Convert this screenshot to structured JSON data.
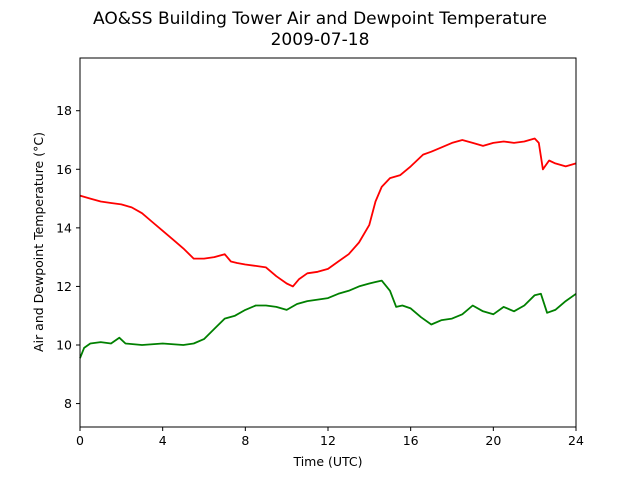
{
  "chart_data": {
    "type": "line",
    "title": "AO&SS Building Tower Air and Dewpoint Temperature",
    "subtitle": "2009-07-18",
    "xlabel": "Time (UTC)",
    "ylabel": "Air and Dewpoint Temperature (°C)",
    "xlim": [
      0,
      24
    ],
    "ylim": [
      7.2,
      19.8
    ],
    "xticks": [
      0,
      4,
      8,
      12,
      16,
      20,
      24
    ],
    "yticks": [
      8,
      10,
      12,
      14,
      16,
      18
    ],
    "grid": false,
    "legend": "none",
    "series": [
      {
        "color": "#ff0000",
        "x": [
          0,
          0.5,
          1,
          1.5,
          2,
          2.5,
          3,
          3.5,
          4,
          4.5,
          5,
          5.5,
          6,
          6.5,
          7,
          7.3,
          7.6,
          8,
          8.5,
          9,
          9.5,
          10,
          10.3,
          10.6,
          11,
          11.5,
          12,
          12.5,
          13,
          13.5,
          14,
          14.3,
          14.6,
          15,
          15.5,
          16,
          16.3,
          16.6,
          17,
          17.5,
          18,
          18.5,
          19,
          19.5,
          20,
          20.5,
          21,
          21.5,
          22,
          22.2,
          22.4,
          22.7,
          23,
          23.5,
          24
        ],
        "y": [
          15.1,
          15.0,
          14.9,
          14.85,
          14.8,
          14.7,
          14.5,
          14.2,
          13.9,
          13.6,
          13.3,
          12.95,
          12.95,
          13.0,
          13.1,
          12.85,
          12.8,
          12.75,
          12.7,
          12.65,
          12.35,
          12.1,
          12.0,
          12.25,
          12.45,
          12.5,
          12.6,
          12.85,
          13.1,
          13.5,
          14.1,
          14.9,
          15.4,
          15.7,
          15.8,
          16.1,
          16.3,
          16.5,
          16.6,
          16.75,
          16.9,
          17.0,
          16.9,
          16.8,
          16.9,
          16.95,
          16.9,
          16.95,
          17.05,
          16.9,
          16.0,
          16.3,
          16.2,
          16.1,
          16.2
        ]
      },
      {
        "color": "#008000",
        "x": [
          0,
          0.2,
          0.5,
          1,
          1.5,
          1.9,
          2.2,
          3,
          4,
          5,
          5.5,
          6,
          6.5,
          7,
          7.5,
          8,
          8.5,
          9,
          9.5,
          10,
          10.5,
          11,
          11.5,
          12,
          12.5,
          13,
          13.5,
          14,
          14.3,
          14.6,
          15,
          15.3,
          15.6,
          16,
          16.5,
          17,
          17.5,
          18,
          18.5,
          19,
          19.5,
          20,
          20.5,
          21,
          21.5,
          22,
          22.3,
          22.6,
          23,
          23.5,
          24
        ],
        "y": [
          9.55,
          9.9,
          10.05,
          10.1,
          10.05,
          10.25,
          10.05,
          10.0,
          10.05,
          10.0,
          10.05,
          10.2,
          10.55,
          10.9,
          11.0,
          11.2,
          11.35,
          11.35,
          11.3,
          11.2,
          11.4,
          11.5,
          11.55,
          11.6,
          11.75,
          11.85,
          12.0,
          12.1,
          12.15,
          12.2,
          11.85,
          11.3,
          11.35,
          11.25,
          10.95,
          10.7,
          10.85,
          10.9,
          11.05,
          11.35,
          11.15,
          11.05,
          11.3,
          11.15,
          11.35,
          11.7,
          11.75,
          11.1,
          11.2,
          11.5,
          11.75
        ]
      }
    ]
  }
}
